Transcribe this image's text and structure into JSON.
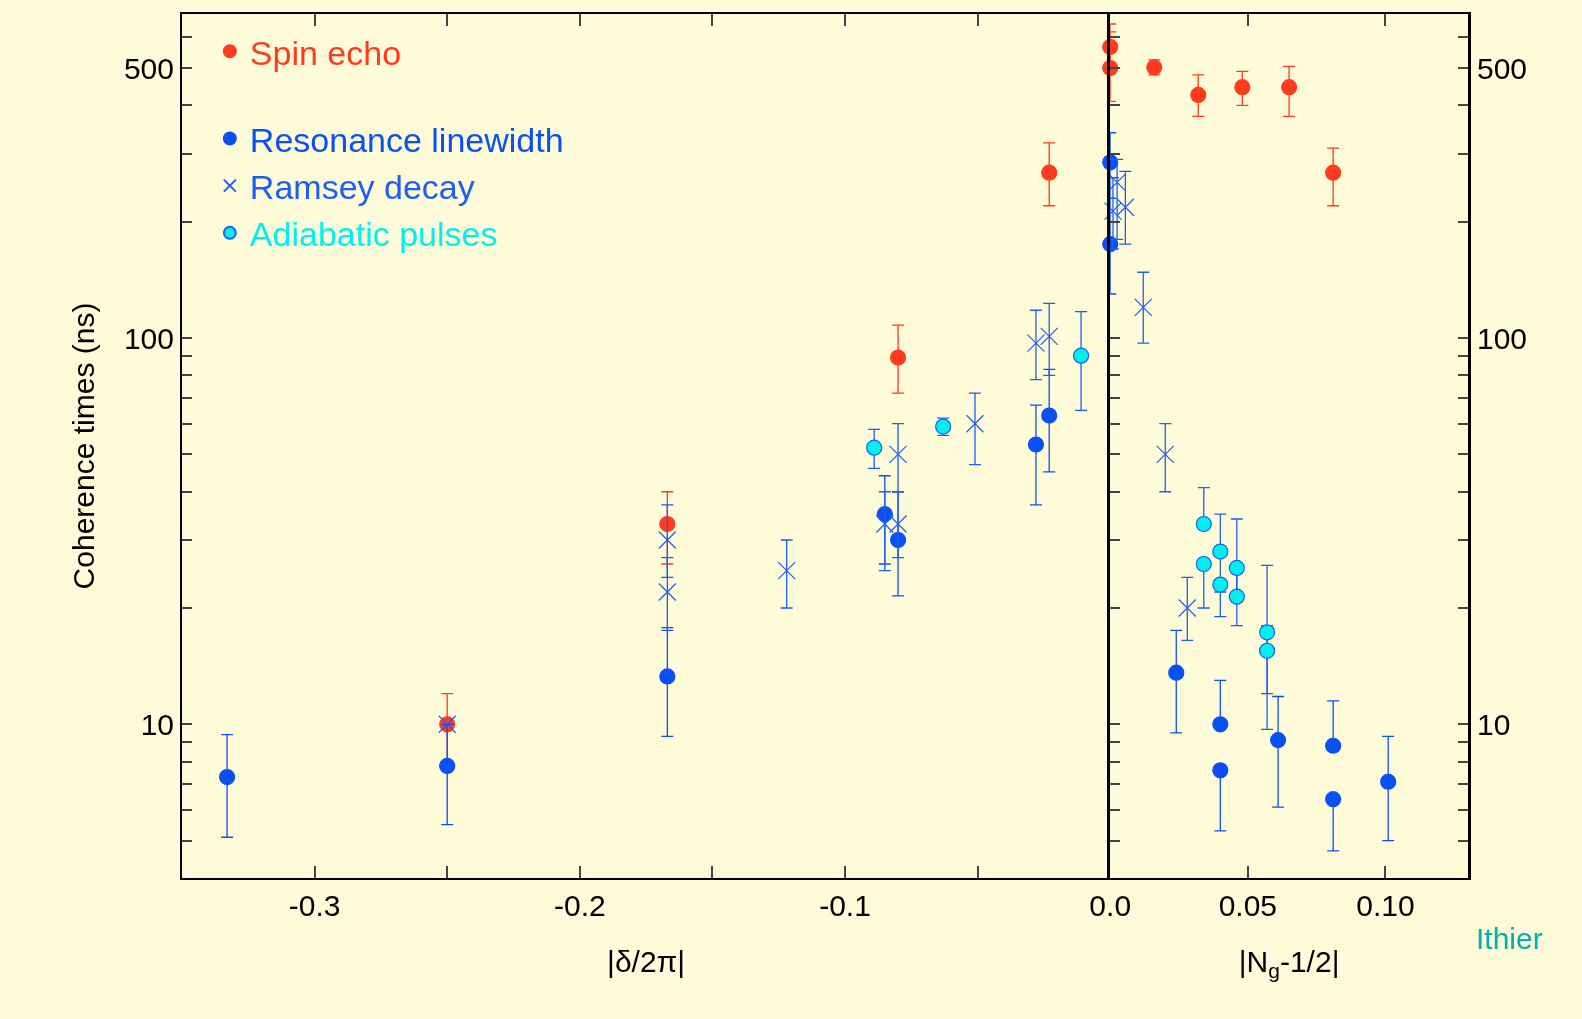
{
  "chart_data": [
    {
      "type": "scatter",
      "xlabel": "|δ/2π|",
      "ylabel": "Coherence times (ns)",
      "legend": "top left",
      "log": "y",
      "grid": false,
      "xlim": [
        -0.35,
        0
      ],
      "xticks": [
        -0.3,
        {
          "value": -0.25,
          "label": null
        },
        -0.2,
        {
          "value": -0.15,
          "label": null
        },
        -0.1,
        {
          "value": -0.05,
          "label": null
        }
      ],
      "ylim": [
        4,
        690
      ],
      "yticks": [
        {
          "value": 5,
          "label": null
        },
        {
          "value": 6,
          "label": null
        },
        {
          "value": 7,
          "label": null
        },
        {
          "value": 8,
          "label": null
        },
        {
          "value": 9,
          "label": null
        },
        10,
        {
          "value": 20,
          "label": null
        },
        {
          "value": 30,
          "label": null
        },
        {
          "value": 40,
          "label": null
        },
        {
          "value": 50,
          "label": null
        },
        {
          "value": 60,
          "label": null
        },
        {
          "value": 70,
          "label": null
        },
        {
          "value": 80,
          "label": null
        },
        {
          "value": 90,
          "label": null
        },
        100,
        {
          "value": 200,
          "label": null
        },
        {
          "value": 300,
          "label": null
        },
        {
          "value": 400,
          "label": null
        },
        500,
        {
          "value": 600,
          "label": null
        }
      ],
      "series": [
        {
          "name": "Spin echo",
          "color": "#ff3b1f",
          "marker": "circle",
          "x": [
            -0.25,
            -0.167,
            -0.08,
            -0.023
          ],
          "values": [
            10,
            33,
            89,
            268
          ],
          "errors": [
            [
              8,
              12
            ],
            [
              26,
              40
            ],
            [
              72,
              108
            ],
            [
              220,
              320
            ]
          ]
        },
        {
          "name": "Resonance linewidth",
          "color": "#0a50f5",
          "marker": "circle",
          "x": [
            -0.333,
            -0.25,
            -0.167,
            -0.085,
            -0.08,
            -0.028,
            -0.023
          ],
          "values": [
            7.3,
            7.8,
            13.3,
            35,
            30,
            53,
            63
          ],
          "errors": [
            [
              5.1,
              9.4
            ],
            [
              5.5,
              10
            ],
            [
              9.3,
              17.8
            ],
            [
              26,
              44
            ],
            [
              21.5,
              40
            ],
            [
              37,
              67
            ],
            [
              45,
              83
            ]
          ]
        },
        {
          "name": "Ramsey decay",
          "color": "#1e5ef5",
          "marker": "cross",
          "x": [
            -0.25,
            -0.167,
            -0.167,
            -0.122,
            -0.085,
            -0.08,
            -0.08,
            -0.051,
            -0.028,
            -0.023
          ],
          "values": [
            10,
            30,
            22,
            25,
            33,
            50,
            33,
            60,
            97,
            101
          ],
          "errors": [
            null,
            [
              24,
              37
            ],
            [
              17.5,
              27
            ],
            [
              20,
              30
            ],
            [
              25,
              40
            ],
            [
              40,
              60
            ],
            [
              27,
              40
            ],
            [
              47,
              72
            ],
            [
              78,
              118
            ],
            [
              80,
              123
            ]
          ]
        },
        {
          "name": "Adiabatic pulses",
          "color": "#00f0f0",
          "marker": "circle",
          "x": [
            -0.089,
            -0.063,
            -0.011
          ],
          "values": [
            52,
            59,
            90
          ],
          "errors": [
            [
              46,
              58
            ],
            [
              56,
              62
            ],
            [
              65,
              117
            ]
          ]
        }
      ]
    },
    {
      "type": "scatter",
      "xlabel": "|N$_{g}$-1/2|",
      "legend": false,
      "log": "y",
      "grid": false,
      "xlim": [
        0,
        0.13
      ],
      "xticks": [
        {
          "value": 0,
          "label": "0.0"
        },
        0.05,
        {
          "value": 0.1,
          "label": "0.10"
        }
      ],
      "ylim": [
        4,
        690
      ],
      "yticks": [
        {
          "value": 5,
          "label": null
        },
        {
          "value": 6,
          "label": null
        },
        {
          "value": 7,
          "label": null
        },
        {
          "value": 8,
          "label": null
        },
        {
          "value": 9,
          "label": null
        },
        10,
        {
          "value": 20,
          "label": null
        },
        {
          "value": 30,
          "label": null
        },
        {
          "value": 40,
          "label": null
        },
        {
          "value": 50,
          "label": null
        },
        {
          "value": 60,
          "label": null
        },
        {
          "value": 70,
          "label": null
        },
        {
          "value": 80,
          "label": null
        },
        {
          "value": 90,
          "label": null
        },
        100,
        {
          "value": 200,
          "label": null
        },
        {
          "value": 300,
          "label": null
        },
        {
          "value": 400,
          "label": null
        },
        500,
        {
          "value": 600,
          "label": null
        }
      ],
      "annotations": [
        "Ithier"
      ],
      "series": [
        {
          "color": "#ff3b1f",
          "marker": "circle",
          "x": [
            0,
            0,
            0.016,
            0.032,
            0.048,
            0.065,
            0.081
          ],
          "values": [
            567,
            500,
            502,
            426,
            446,
            446,
            268
          ],
          "errors": [
            [
              500,
              650
            ],
            [
              410,
              620
            ],
            [
              480,
              525
            ],
            [
              375,
              480
            ],
            [
              400,
              490
            ],
            [
              375,
              505
            ],
            [
              220,
              310
            ]
          ]
        },
        {
          "color": "#0a50f5",
          "marker": "circle",
          "x": [
            0,
            0,
            0.024,
            0.04,
            0.04,
            0.061,
            0.081,
            0.081,
            0.101
          ],
          "values": [
            285,
            175,
            13.6,
            10,
            7.6,
            9.1,
            8.8,
            6.4,
            7.1
          ],
          "errors": [
            [
              230,
              340
            ],
            [
              130,
              230
            ],
            [
              9.5,
              17.5
            ],
            [
              10,
              13
            ],
            [
              5.3,
              7.6
            ],
            [
              6.1,
              11.8
            ],
            [
              8.8,
              11.5
            ],
            [
              4.7,
              6.4
            ],
            [
              5,
              9.3
            ]
          ]
        },
        {
          "color": "#1e5ef5",
          "marker": "cross",
          "x": [
            0.001,
            0.0025,
            0.0055,
            0.012,
            0.02,
            0.028
          ],
          "values": [
            213,
            253,
            218,
            120,
            50,
            20
          ],
          "errors": [
            [
              170,
              260
            ],
            [
              180,
              290
            ],
            [
              175,
              270
            ],
            [
              97,
              148
            ],
            [
              40,
              60
            ],
            [
              16.5,
              24
            ]
          ]
        },
        {
          "color": "#00f0f0",
          "marker": "circle",
          "x": [
            0.034,
            0.034,
            0.04,
            0.04,
            0.046,
            0.046,
            0.057,
            0.057
          ],
          "values": [
            33,
            26,
            28,
            23,
            25.4,
            21.4,
            17.3,
            15.5
          ],
          "errors": [
            [
              33,
              41
            ],
            [
              20,
              26
            ],
            [
              22,
              35
            ],
            [
              19,
              23
            ],
            [
              21,
              34
            ],
            [
              18,
              26
            ],
            [
              12,
              25.8
            ],
            [
              9.7,
              18
            ]
          ]
        }
      ]
    }
  ]
}
